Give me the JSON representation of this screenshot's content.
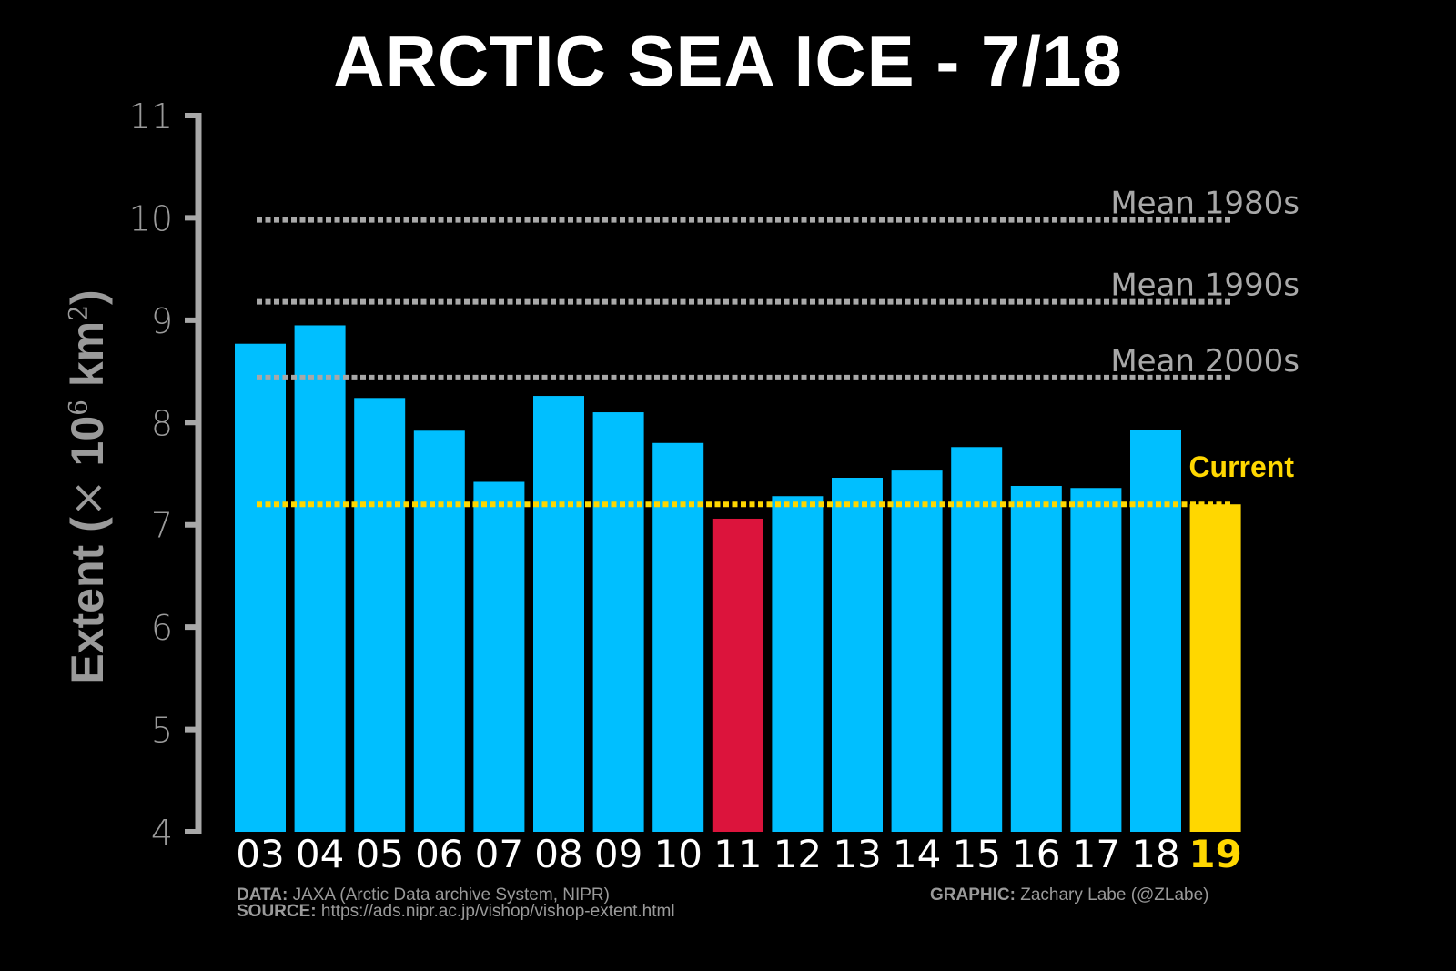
{
  "title": "ARCTIC SEA ICE - 7/18",
  "credits": {
    "data_label": "DATA:",
    "data_text": "JAXA (Arctic Data archive System, NIPR)",
    "source_label": "SOURCE:",
    "source_text": "https://ads.nipr.ac.jp/vishop/vishop-extent.html",
    "graphic_label": "GRAPHIC:",
    "graphic_text": "Zachary Labe (@ZLabe)"
  },
  "colors": {
    "background": "#000000",
    "bar_default": "#00bfff",
    "bar_record_low": "#dc143c",
    "bar_current": "#ffd700",
    "axis": "#a8a8a8",
    "reference_line": "#a8a8a8",
    "current_line": "#ffd700",
    "tick_text": "#ffffff"
  },
  "chart_data": {
    "type": "bar",
    "title": "ARCTIC SEA ICE - 7/18",
    "xlabel": "",
    "ylabel": "Extent (× 10^6 km^2)",
    "ylabel_parts": {
      "main": "Extent (",
      "times": "×",
      "base": " 10",
      "exp": "6",
      "unit": " km",
      "unit_exp": "2",
      "close": ")"
    },
    "ylim": [
      4,
      11
    ],
    "yticks": [
      4,
      5,
      6,
      7,
      8,
      9,
      10,
      11
    ],
    "grid": false,
    "categories": [
      "03",
      "04",
      "05",
      "06",
      "07",
      "08",
      "09",
      "10",
      "11",
      "12",
      "13",
      "14",
      "15",
      "16",
      "17",
      "18",
      "19"
    ],
    "values": [
      8.77,
      8.95,
      8.24,
      7.92,
      7.42,
      8.26,
      8.1,
      7.8,
      7.06,
      7.28,
      7.46,
      7.53,
      7.76,
      7.38,
      7.36,
      7.93,
      7.2
    ],
    "highlight": {
      "record_low_index": 8,
      "current_index": 16
    },
    "reference_lines": [
      {
        "label": "Mean 1980s",
        "value": 9.98
      },
      {
        "label": "Mean 1990s",
        "value": 9.18
      },
      {
        "label": "Mean 2000s",
        "value": 8.44
      }
    ],
    "current_line": {
      "label": "Current",
      "value": 7.2
    }
  }
}
